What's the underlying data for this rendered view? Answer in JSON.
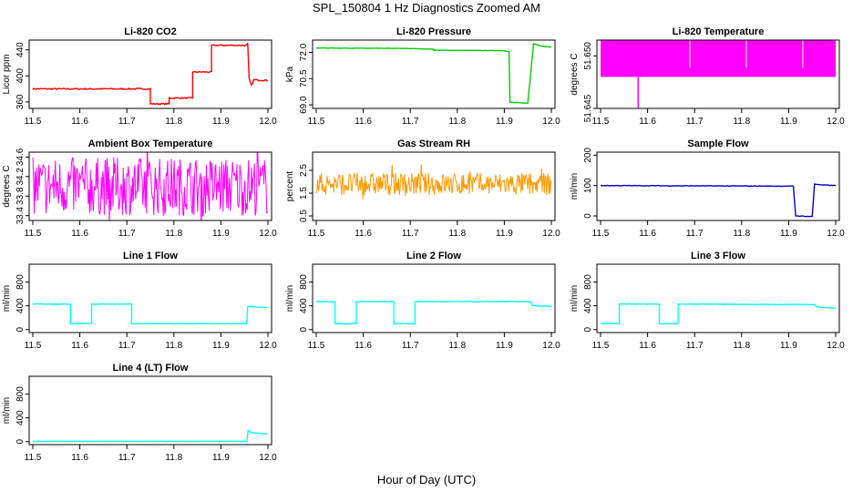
{
  "title": "SPL_150804  1 Hz Diagnostics Zoomed AM",
  "xlabel": "Hour of Day (UTC)",
  "chart_data": [
    {
      "type": "line",
      "title": "Li-820 CO2",
      "ylabel": "Licor ppm",
      "color": "#ff0000",
      "xlim": [
        11.5,
        12.0
      ],
      "ylim": [
        350,
        455
      ],
      "xticks": [
        "11.5",
        "11.6",
        "11.7",
        "11.8",
        "11.9",
        "12.0"
      ],
      "xtick_values": [
        11.5,
        11.6,
        11.7,
        11.8,
        11.9,
        12.0
      ],
      "yticks": [
        "360",
        "400",
        "440"
      ],
      "ytick_values": [
        360,
        400,
        440
      ],
      "segments": [
        [
          11.5,
          380
        ],
        [
          11.75,
          380
        ],
        [
          11.75,
          357
        ],
        [
          11.79,
          357
        ],
        [
          11.79,
          366
        ],
        [
          11.84,
          366
        ],
        [
          11.84,
          406
        ],
        [
          11.88,
          406
        ],
        [
          11.88,
          447
        ],
        [
          11.955,
          447
        ],
        [
          11.957,
          450
        ],
        [
          11.96,
          395
        ],
        [
          11.965,
          385
        ],
        [
          11.97,
          394
        ],
        [
          12.0,
          393
        ]
      ],
      "noise": 1
    },
    {
      "type": "line",
      "title": "Li-820 Pressure",
      "ylabel": "kPa",
      "color": "#00cc00",
      "xlim": [
        11.5,
        12.0
      ],
      "ylim": [
        68.8,
        72.7
      ],
      "xticks": [
        "11.5",
        "11.6",
        "11.7",
        "11.8",
        "11.9",
        "12.0"
      ],
      "xtick_values": [
        11.5,
        11.6,
        11.7,
        11.8,
        11.9,
        12.0
      ],
      "yticks": [
        "69.0",
        "70.5",
        "72.0"
      ],
      "ytick_values": [
        69.0,
        70.5,
        72.0
      ],
      "segments": [
        [
          11.5,
          72.25
        ],
        [
          11.7,
          72.22
        ],
        [
          11.75,
          72.18
        ],
        [
          11.75,
          72.12
        ],
        [
          11.9,
          72.1
        ],
        [
          11.91,
          72.02
        ],
        [
          11.912,
          69.15
        ],
        [
          11.95,
          69.1
        ],
        [
          11.962,
          72.5
        ],
        [
          11.98,
          72.35
        ],
        [
          12.0,
          72.3
        ]
      ],
      "noise": 0.01
    },
    {
      "type": "band",
      "title": "Li-820 Temperature",
      "ylabel": "degrees C",
      "color": "#ff00ff",
      "xlim": [
        11.5,
        12.0
      ],
      "ylim": [
        51.645,
        51.6515
      ],
      "xticks": [
        "11.5",
        "11.6",
        "11.7",
        "11.8",
        "11.9",
        "12.0"
      ],
      "xtick_values": [
        11.5,
        11.6,
        11.7,
        11.8,
        11.9,
        12.0
      ],
      "yticks": [
        "51.645",
        "51.650"
      ],
      "ytick_values": [
        51.645,
        51.65
      ],
      "band": [
        51.648,
        51.6515
      ],
      "dip_x": 11.58,
      "dip_y": 51.645
    },
    {
      "type": "noise",
      "title": "Ambient Box Temperature",
      "ylabel": "degrees C",
      "color": "#ff00ff",
      "xlim": [
        11.5,
        12.0
      ],
      "ylim": [
        33.3,
        34.7
      ],
      "xticks": [
        "11.5",
        "11.6",
        "11.7",
        "11.8",
        "11.9",
        "12.0"
      ],
      "xtick_values": [
        11.5,
        11.6,
        11.7,
        11.8,
        11.9,
        12.0
      ],
      "yticks": [
        "33.4",
        "33.8",
        "34.2",
        "34.6"
      ],
      "ytick_values": [
        33.4,
        33.8,
        34.2,
        34.6
      ],
      "range": [
        33.4,
        34.6
      ]
    },
    {
      "type": "noise",
      "title": "Gas Stream RH",
      "ylabel": "percent",
      "color": "#ff9900",
      "xlim": [
        11.5,
        12.0
      ],
      "ylim": [
        0.3,
        3.3
      ],
      "xticks": [
        "11.5",
        "11.6",
        "11.7",
        "11.8",
        "11.9",
        "12.0"
      ],
      "xtick_values": [
        11.5,
        11.6,
        11.7,
        11.8,
        11.9,
        12.0
      ],
      "yticks": [
        "0.5",
        "1.5",
        "2.5"
      ],
      "ytick_values": [
        0.5,
        1.5,
        2.5
      ],
      "range": [
        1.4,
        2.4
      ]
    },
    {
      "type": "line",
      "title": "Sample Flow",
      "ylabel": "ml/min",
      "color": "#0000cc",
      "xlim": [
        11.5,
        12.0
      ],
      "ylim": [
        -15,
        210
      ],
      "xticks": [
        "11.5",
        "11.6",
        "11.7",
        "11.8",
        "11.9",
        "12.0"
      ],
      "xtick_values": [
        11.5,
        11.6,
        11.7,
        11.8,
        11.9,
        12.0
      ],
      "yticks": [
        "0",
        "100",
        "200"
      ],
      "ytick_values": [
        0,
        100,
        200
      ],
      "segments": [
        [
          11.5,
          100
        ],
        [
          11.91,
          98
        ],
        [
          11.915,
          0
        ],
        [
          11.95,
          -2
        ],
        [
          11.955,
          105
        ],
        [
          11.97,
          102
        ],
        [
          12.0,
          100
        ]
      ],
      "noise": 1
    },
    {
      "type": "line",
      "title": "Line 1 Flow",
      "ylabel": "ml/min",
      "color": "#00ffff",
      "xlim": [
        11.5,
        12.0
      ],
      "ylim": [
        -50,
        1100
      ],
      "xticks": [
        "11.5",
        "11.6",
        "11.7",
        "11.8",
        "11.9",
        "12.0"
      ],
      "xtick_values": [
        11.5,
        11.6,
        11.7,
        11.8,
        11.9,
        12.0
      ],
      "yticks": [
        "0",
        "400",
        "800"
      ],
      "ytick_values": [
        0,
        400,
        800
      ],
      "segments": [
        [
          11.5,
          430
        ],
        [
          11.58,
          430
        ],
        [
          11.58,
          100
        ],
        [
          11.625,
          100
        ],
        [
          11.625,
          430
        ],
        [
          11.71,
          430
        ],
        [
          11.71,
          100
        ],
        [
          11.955,
          100
        ],
        [
          11.957,
          390
        ],
        [
          12.0,
          370
        ]
      ],
      "noise": 6
    },
    {
      "type": "line",
      "title": "Line 2 Flow",
      "ylabel": "ml/min",
      "color": "#00ffff",
      "xlim": [
        11.5,
        12.0
      ],
      "ylim": [
        -50,
        1100
      ],
      "xticks": [
        "11.5",
        "11.6",
        "11.7",
        "11.8",
        "11.9",
        "12.0"
      ],
      "xtick_values": [
        11.5,
        11.6,
        11.7,
        11.8,
        11.9,
        12.0
      ],
      "yticks": [
        "0",
        "400",
        "800"
      ],
      "ytick_values": [
        0,
        400,
        800
      ],
      "segments": [
        [
          11.5,
          470
        ],
        [
          11.54,
          470
        ],
        [
          11.54,
          100
        ],
        [
          11.585,
          100
        ],
        [
          11.585,
          470
        ],
        [
          11.665,
          470
        ],
        [
          11.665,
          100
        ],
        [
          11.71,
          100
        ],
        [
          11.71,
          470
        ],
        [
          11.955,
          470
        ],
        [
          11.96,
          400
        ],
        [
          12.0,
          390
        ]
      ],
      "noise": 8
    },
    {
      "type": "line",
      "title": "Line 3 Flow",
      "ylabel": "ml/min",
      "color": "#00ffff",
      "xlim": [
        11.5,
        12.0
      ],
      "ylim": [
        -50,
        1100
      ],
      "xticks": [
        "11.5",
        "11.6",
        "11.7",
        "11.8",
        "11.9",
        "12.0"
      ],
      "xtick_values": [
        11.5,
        11.6,
        11.7,
        11.8,
        11.9,
        12.0
      ],
      "yticks": [
        "0",
        "400",
        "800"
      ],
      "ytick_values": [
        0,
        400,
        800
      ],
      "segments": [
        [
          11.5,
          100
        ],
        [
          11.54,
          100
        ],
        [
          11.54,
          430
        ],
        [
          11.625,
          430
        ],
        [
          11.625,
          100
        ],
        [
          11.665,
          100
        ],
        [
          11.665,
          430
        ],
        [
          11.955,
          420
        ],
        [
          11.96,
          380
        ],
        [
          12.0,
          360
        ]
      ],
      "noise": 6
    },
    {
      "type": "line",
      "title": "Line 4 (LT) Flow",
      "ylabel": "ml/min",
      "color": "#00ffff",
      "xlim": [
        11.5,
        12.0
      ],
      "ylim": [
        -50,
        1100
      ],
      "xticks": [
        "11.5",
        "11.6",
        "11.7",
        "11.8",
        "11.9",
        "12.0"
      ],
      "xtick_values": [
        11.5,
        11.6,
        11.7,
        11.8,
        11.9,
        12.0
      ],
      "yticks": [
        "0",
        "400",
        "800"
      ],
      "ytick_values": [
        0,
        400,
        800
      ],
      "segments": [
        [
          11.5,
          5
        ],
        [
          11.955,
          5
        ],
        [
          11.958,
          190
        ],
        [
          11.965,
          150
        ],
        [
          12.0,
          130
        ]
      ],
      "noise": 2
    }
  ]
}
